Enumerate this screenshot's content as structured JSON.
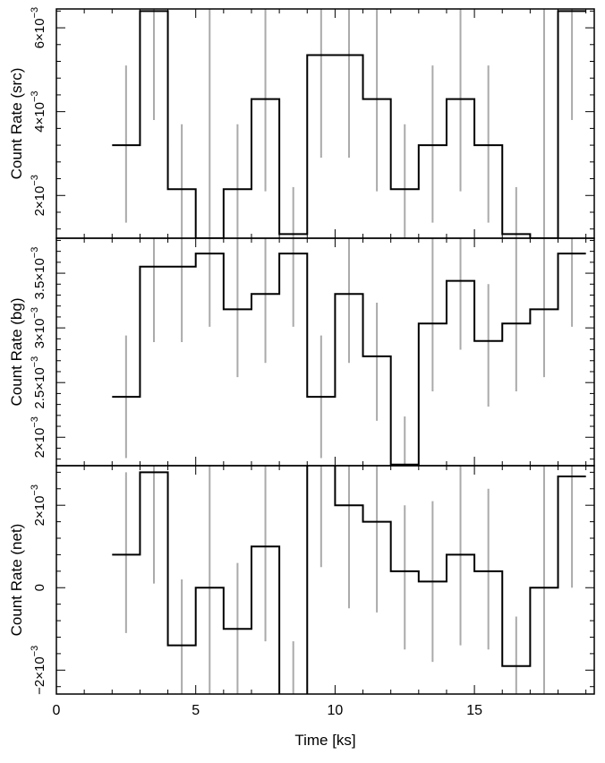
{
  "chart_data": [
    {
      "type": "line",
      "panel": "src",
      "ylabel": "Count Rate (src)",
      "ylim": [
        0.00098,
        0.00645
      ],
      "yticks": [
        0.002,
        0.004,
        0.006
      ],
      "ytick_labels": [
        {
          "mant": "2",
          "exp": "−3"
        },
        {
          "mant": "4",
          "exp": "−3"
        },
        {
          "mant": "6",
          "exp": "−3"
        }
      ],
      "x": [
        2.5,
        3.5,
        4.5,
        5.5,
        6.5,
        7.5,
        8.5,
        9.5,
        10.5,
        11.5,
        12.5,
        13.5,
        14.5,
        15.5,
        16.5,
        17.5,
        18.5
      ],
      "values": [
        0.0032,
        0.0064,
        0.00215,
        0.00098,
        0.00215,
        0.0043,
        0.00108,
        0.00535,
        0.00535,
        0.0043,
        0.00215,
        0.0032,
        0.0043,
        0.0032,
        0.00108,
        0.00098,
        0.0064
      ],
      "err_low": [
        0.00135,
        0.0038,
        0.00045,
        null,
        0.00045,
        0.0021,
        null,
        0.0029,
        0.0029,
        0.0021,
        0.00045,
        0.00135,
        0.0021,
        0.00135,
        null,
        null,
        0.0038
      ],
      "err_high": [
        0.0051,
        null,
        0.0037,
        null,
        0.0037,
        null,
        0.0022,
        null,
        null,
        null,
        0.0037,
        0.0051,
        null,
        0.0051,
        0.0022,
        null,
        null
      ]
    },
    {
      "type": "line",
      "panel": "bg",
      "ylabel": "Count Rate (bg)",
      "ylim": [
        0.00174,
        0.00382
      ],
      "yticks": [
        0.002,
        0.0025,
        0.003,
        0.0035
      ],
      "ytick_labels": [
        {
          "mant": "2",
          "exp": "−3"
        },
        {
          "mant": "2.5",
          "exp": "−3"
        },
        {
          "mant": "3",
          "exp": "−3"
        },
        {
          "mant": "3.5",
          "exp": "−3"
        }
      ],
      "x": [
        2.5,
        3.5,
        4.5,
        5.5,
        6.5,
        7.5,
        8.5,
        9.5,
        10.5,
        11.5,
        12.5,
        13.5,
        14.5,
        15.5,
        16.5,
        17.5,
        18.5
      ],
      "values": [
        0.00237,
        0.00356,
        0.00356,
        0.00368,
        0.00317,
        0.00331,
        0.00368,
        0.00237,
        0.00331,
        0.00274,
        0.00175,
        0.00304,
        0.00343,
        0.00288,
        0.00304,
        0.00317,
        0.00368
      ],
      "err_low": [
        0.00181,
        0.00287,
        0.00287,
        0.00301,
        0.00255,
        0.00268,
        0.00301,
        0.00181,
        0.00268,
        0.00215,
        0.00139,
        0.00242,
        0.0028,
        0.00228,
        0.00242,
        0.00255,
        0.00301
      ],
      "err_high": [
        0.00293,
        null,
        null,
        null,
        null,
        null,
        null,
        0.00293,
        null,
        0.00323,
        0.00219,
        null,
        null,
        0.0034,
        null,
        null,
        null
      ]
    },
    {
      "type": "line",
      "panel": "net",
      "ylabel": "Count Rate (net)",
      "xlabel": "Time [ks]",
      "ylim": [
        -0.00258,
        0.00296
      ],
      "xlim": [
        0,
        19.3
      ],
      "xticks": [
        0,
        5,
        10,
        15
      ],
      "xtick_labels": [
        "0",
        "5",
        "10",
        "15"
      ],
      "yticks": [
        -0.002,
        0,
        0.002
      ],
      "ytick_labels": [
        {
          "mant": "−2",
          "exp": "−3"
        },
        {
          "mant": "0",
          "exp": ""
        },
        {
          "mant": "2",
          "exp": "−3"
        }
      ],
      "x": [
        2.5,
        3.5,
        4.5,
        5.5,
        6.5,
        7.5,
        8.5,
        9.5,
        10.5,
        11.5,
        12.5,
        13.5,
        14.5,
        15.5,
        16.5,
        17.5,
        18.5
      ],
      "values": [
        0.0008,
        0.0028,
        -0.0014,
        0.0,
        -0.001,
        0.001,
        -0.0035,
        0.003,
        0.002,
        0.0016,
        0.0004,
        0.00015,
        0.0008,
        0.0004,
        -0.0019,
        0.0,
        0.0027
      ],
      "err_low": [
        -0.0011,
        0.0001,
        null,
        null,
        null,
        -0.0013,
        null,
        0.0005,
        -0.0005,
        -0.0006,
        -0.0015,
        -0.0018,
        -0.0014,
        -0.0015,
        null,
        null,
        0.0
      ],
      "err_high": [
        0.0028,
        null,
        0.0002,
        null,
        0.0006,
        null,
        -0.0013,
        null,
        null,
        null,
        0.002,
        0.0021,
        null,
        0.0024,
        -0.0007,
        null,
        null
      ]
    }
  ],
  "colors": {
    "histogram": "#000000",
    "errorbar": "#aaaaaa",
    "axis": "#000000"
  }
}
